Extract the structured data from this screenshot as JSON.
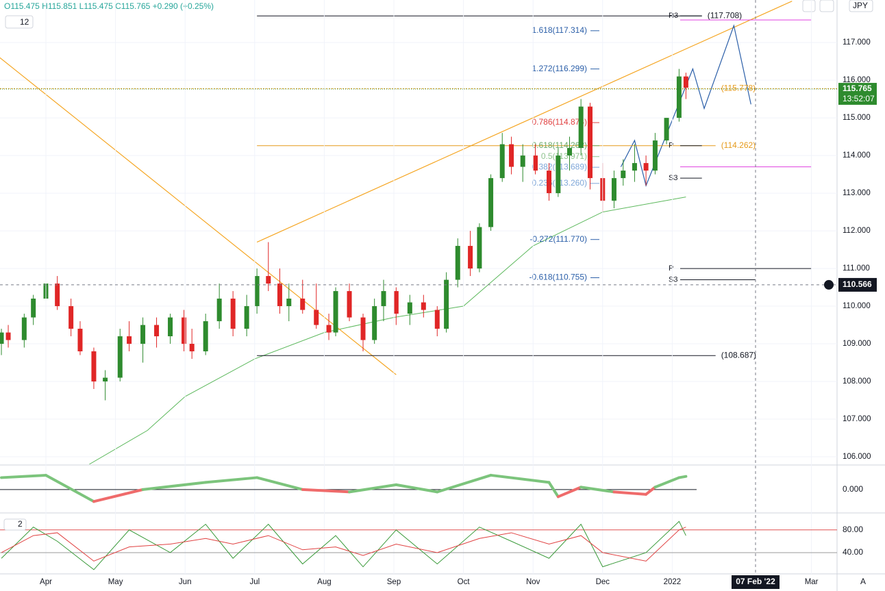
{
  "chart_data": {
    "type": "candlestick",
    "header": "O115.475 H115.851 L115.475 C115.765 +0.290 (+0.25%)",
    "interval": "12",
    "currency": "JPY",
    "up_color": "#2e8b2e",
    "down_color": "#e02626",
    "x": [
      "Mar 12",
      "Mar 15",
      "Mar 22",
      "Mar 26",
      "Apr 1",
      "Apr 6",
      "Apr 12",
      "Apr 16",
      "Apr 22",
      "Apr 27",
      "May 3",
      "May 7",
      "May 13",
      "May 19",
      "May 25",
      "May 31",
      "Jun 4",
      "Jun 10",
      "Jun 16",
      "Jun 22",
      "Jun 28",
      "Jul 2",
      "Jul 7",
      "Jul 12",
      "Jul 16",
      "Jul 22",
      "Jul 28",
      "Aug 3",
      "Aug 6",
      "Aug 12",
      "Aug 18",
      "Aug 23",
      "Aug 27",
      "Sep 2",
      "Sep 8",
      "Sep 14",
      "Sep 20",
      "Sep 24",
      "Sep 29",
      "Oct 4",
      "Oct 8",
      "Oct 13",
      "Oct 18",
      "Oct 22",
      "Oct 27",
      "Nov 2",
      "Nov 8",
      "Nov 12",
      "Nov 17",
      "Nov 22",
      "Nov 26",
      "Dec 1",
      "Dec 6",
      "Dec 10",
      "Dec 15",
      "Dec 20",
      "Dec 24",
      "Dec 29",
      "Jan 4",
      "Jan 7"
    ],
    "open": [
      109.0,
      109.3,
      109.1,
      109.7,
      110.2,
      110.6,
      110.0,
      109.4,
      108.8,
      108.0,
      108.1,
      109.2,
      109.0,
      109.5,
      109.2,
      109.7,
      109.0,
      108.8,
      109.6,
      110.2,
      109.4,
      110.0,
      110.8,
      110.6,
      110.0,
      110.2,
      109.9,
      109.5,
      109.3,
      110.4,
      109.7,
      109.1,
      110.0,
      110.4,
      109.8,
      110.1,
      109.9,
      109.4,
      110.7,
      111.6,
      111.0,
      112.1,
      113.4,
      114.3,
      113.7,
      114.0,
      113.6,
      113.0,
      114.0,
      114.2,
      115.3,
      113.4,
      112.8,
      113.4,
      113.6,
      113.8,
      113.6,
      114.4,
      115.0,
      116.1
    ],
    "high": [
      109.4,
      109.5,
      109.8,
      110.3,
      110.9,
      110.8,
      110.2,
      109.6,
      108.9,
      108.3,
      109.4,
      109.6,
      109.7,
      109.7,
      109.8,
      109.9,
      109.4,
      109.8,
      110.6,
      110.4,
      110.3,
      111.0,
      111.7,
      111.0,
      110.6,
      110.7,
      110.6,
      109.8,
      110.5,
      110.6,
      109.8,
      110.2,
      110.7,
      110.5,
      110.3,
      110.3,
      110.0,
      110.9,
      111.8,
      112.0,
      112.2,
      113.5,
      114.6,
      114.5,
      114.3,
      114.3,
      113.8,
      114.2,
      114.5,
      115.5,
      115.4,
      113.8,
      113.6,
      113.9,
      114.3,
      114.0,
      114.6,
      115.0,
      116.3,
      116.2
    ],
    "low": [
      108.7,
      108.9,
      108.9,
      109.5,
      110.0,
      109.9,
      109.2,
      108.7,
      107.8,
      107.5,
      108.0,
      108.8,
      108.5,
      108.9,
      109.0,
      108.8,
      108.6,
      108.7,
      109.4,
      109.2,
      109.2,
      109.8,
      110.4,
      109.8,
      109.6,
      109.8,
      109.4,
      109.1,
      109.2,
      109.6,
      108.8,
      109.0,
      109.6,
      109.5,
      109.5,
      109.7,
      109.2,
      109.3,
      110.5,
      110.8,
      110.9,
      112.0,
      113.3,
      113.5,
      113.3,
      113.5,
      112.8,
      112.9,
      113.6,
      114.0,
      113.1,
      112.5,
      112.6,
      113.2,
      113.3,
      113.2,
      113.5,
      114.3,
      114.9,
      115.5
    ],
    "close": [
      109.3,
      109.1,
      109.7,
      110.2,
      110.6,
      110.0,
      109.4,
      108.8,
      108.0,
      108.1,
      109.2,
      109.0,
      109.5,
      109.2,
      109.7,
      109.0,
      108.8,
      109.6,
      110.2,
      109.4,
      110.0,
      110.8,
      110.6,
      110.0,
      110.2,
      109.9,
      109.5,
      109.3,
      110.4,
      109.7,
      109.1,
      110.0,
      110.4,
      109.8,
      110.1,
      109.9,
      109.4,
      110.7,
      111.6,
      111.0,
      112.1,
      113.4,
      114.3,
      113.7,
      114.0,
      113.6,
      113.0,
      114.0,
      114.2,
      115.3,
      113.4,
      112.8,
      113.4,
      113.6,
      113.8,
      113.6,
      114.4,
      115.0,
      116.1,
      115.8
    ],
    "ylim": [
      105.8,
      118.13
    ],
    "yticks": [
      {
        "value": 106,
        "label": "106.000"
      },
      {
        "value": 107,
        "label": "107.000"
      },
      {
        "value": 108,
        "label": "108.000"
      },
      {
        "value": 109,
        "label": "109.000"
      },
      {
        "value": 110,
        "label": "110.000"
      },
      {
        "value": 111,
        "label": "111.000"
      },
      {
        "value": 112,
        "label": "112.000"
      },
      {
        "value": 113,
        "label": "113.000"
      },
      {
        "value": 114,
        "label": "114.000"
      },
      {
        "value": 115,
        "label": "115.000"
      },
      {
        "value": 116,
        "label": "116.000"
      },
      {
        "value": 117,
        "label": "117.000"
      }
    ],
    "xticks": [
      {
        "value": "Apr 1",
        "label": "Apr"
      },
      {
        "value": "May 1",
        "label": "May"
      },
      {
        "value": "Jun 1",
        "label": "Jun"
      },
      {
        "value": "Jul 1",
        "label": "Jul"
      },
      {
        "value": "Aug 1",
        "label": "Aug"
      },
      {
        "value": "Sep 1",
        "label": "Sep"
      },
      {
        "value": "Oct 1",
        "label": "Oct"
      },
      {
        "value": "Nov 1",
        "label": "Nov"
      },
      {
        "value": "Dec 1",
        "label": "Dec"
      },
      {
        "value": "Jan 1",
        "label": "2022"
      },
      {
        "value": "Mar 1",
        "label": "Mar"
      }
    ],
    "last_price": {
      "value": 115.765,
      "label": "115.765"
    },
    "countdown": "13:52:07",
    "crosshair": {
      "price": {
        "value": 110.566,
        "label": "110.566"
      },
      "date": "Feb 7",
      "date_label": "07 Feb '22"
    },
    "levels": [
      {
        "value": 117.708,
        "label": "(117.708)",
        "color": "#131722",
        "from": "Jul 2",
        "to": "Jan 14"
      },
      {
        "value": 115.778,
        "label": "(115.778)",
        "color": "#e69a1a",
        "from": "Jul 2",
        "to": "Jan 20"
      },
      {
        "value": 114.262,
        "label": "(114.262)",
        "color": "#e69a1a",
        "from": "Jul 2",
        "to": "Jan 20"
      },
      {
        "value": 108.687,
        "label": "(108.687)",
        "color": "#131722",
        "from": "Jul 2",
        "to": "Jan 20"
      }
    ],
    "fibs": [
      {
        "value": 117.314,
        "label": "1.618(117.314)",
        "color": "#2a5ea8"
      },
      {
        "value": 116.299,
        "label": "1.272(116.299)",
        "color": "#2a5ea8"
      },
      {
        "value": 114.874,
        "label": "0.786(114.874)",
        "color": "#e04040"
      },
      {
        "value": 114.262,
        "label": "0.618(114.262)",
        "color": "#6aaa6a"
      },
      {
        "value": 113.971,
        "label": "0.5(113.971)",
        "color": "#8fc48f"
      },
      {
        "value": 113.689,
        "label": "0.382(113.689)",
        "color": "#7ea6d8"
      },
      {
        "value": 113.26,
        "label": "0.236(113.260)",
        "color": "#7ea6d8"
      },
      {
        "value": 111.77,
        "label": "-0.272(111.770)",
        "color": "#2a5ea8"
      },
      {
        "value": 110.755,
        "label": "-0.618(110.755)",
        "color": "#2a5ea8"
      }
    ],
    "pivots": [
      {
        "label": "R3",
        "value": 117.708,
        "color": "#131722",
        "to": "Jan 14"
      },
      {
        "label": "R3",
        "value": 117.6,
        "color": "#e040e0",
        "to": "Mar 1"
      },
      {
        "label": "P",
        "value": 114.262,
        "color": "#131722",
        "to": "Jan 14"
      },
      {
        "label": "S3",
        "value": 113.4,
        "color": "#131722",
        "to": "Jan 14"
      },
      {
        "label": "S3",
        "value": 113.7,
        "color": "#e040e0",
        "to": "Mar 1"
      },
      {
        "label": "P",
        "value": 111.0,
        "color": "#131722",
        "to": "Mar 1"
      },
      {
        "label": "S3",
        "value": 110.7,
        "color": "#131722",
        "to": "Feb 7"
      }
    ],
    "trend_lines": [
      {
        "color": "#f5a623",
        "x": [
          "Jul 2",
          "Feb 23"
        ],
        "y": [
          111.7,
          118.1
        ]
      },
      {
        "color": "#f5a623",
        "x": [
          "Sep 2",
          "Mar 8"
        ],
        "y": [
          108.18,
          116.76
        ]
      },
      {
        "color": "#2a5ea8",
        "x": [
          "Dec 9",
          "Dec 15",
          "Dec 20",
          "Jan 10",
          "Jan 15",
          "Jan 28",
          "Feb 5"
        ],
        "y": [
          113.7,
          114.4,
          113.2,
          116.3,
          115.25,
          117.45,
          115.36
        ]
      }
    ],
    "ma": {
      "color": "#5cb85c",
      "x": [
        "Apr 20",
        "May 15",
        "Jun 1",
        "Jul 1",
        "Aug 1",
        "Sep 1",
        "Oct 1",
        "Nov 1",
        "Dec 1",
        "Jan 7"
      ],
      "y": [
        105.8,
        106.7,
        107.6,
        108.6,
        109.3,
        109.7,
        110.0,
        111.6,
        112.5,
        112.9
      ]
    },
    "osc": {
      "ylim": [
        -0.95,
        1
      ],
      "yticks": [
        {
          "value": 0,
          "label": "0.000"
        }
      ],
      "x": [
        "Mar 12",
        "Apr 1",
        "Apr 22",
        "May 13",
        "Jun 10",
        "Jul 2",
        "Jul 22",
        "Aug 12",
        "Sep 2",
        "Sep 20",
        "Oct 13",
        "Nov 8",
        "Nov 12",
        "Nov 22",
        "Dec 6",
        "Dec 20",
        "Dec 24",
        "Jan 4",
        "Jan 7"
      ],
      "values": [
        0.5,
        0.6,
        -0.5,
        0.0,
        0.3,
        0.5,
        0.0,
        -0.1,
        0.2,
        -0.1,
        0.6,
        0.3,
        -0.3,
        0.1,
        -0.1,
        -0.2,
        0.1,
        0.5,
        0.55
      ]
    },
    "stoch": {
      "label": "2",
      "ylim": [
        2.5,
        108.75
      ],
      "yticks": [
        {
          "value": 80,
          "label": "80.00"
        },
        {
          "value": 40,
          "label": "40.00"
        }
      ],
      "x": [
        "Mar 12",
        "Mar 26",
        "Apr 6",
        "Apr 22",
        "May 7",
        "May 25",
        "Jun 10",
        "Jun 22",
        "Jul 7",
        "Jul 22",
        "Aug 6",
        "Aug 18",
        "Sep 2",
        "Sep 20",
        "Oct 8",
        "Oct 22",
        "Nov 8",
        "Nov 22",
        "Dec 1",
        "Dec 20",
        "Jan 4",
        "Jan 7"
      ],
      "fast": [
        30,
        85,
        60,
        10,
        80,
        40,
        90,
        30,
        90,
        20,
        70,
        15,
        80,
        20,
        85,
        60,
        30,
        90,
        15,
        40,
        95,
        70
      ],
      "slow": [
        40,
        70,
        75,
        25,
        50,
        55,
        65,
        55,
        70,
        45,
        50,
        35,
        55,
        40,
        65,
        75,
        55,
        70,
        40,
        25,
        80,
        85
      ]
    }
  }
}
